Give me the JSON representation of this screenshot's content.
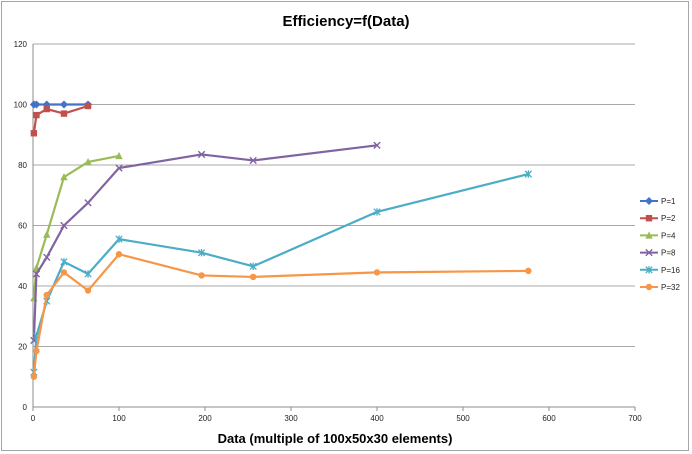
{
  "chart_data": {
    "type": "line",
    "title": "Efficiency=f(Data)",
    "xlabel": "Data (multiple of 100x50x30 elements)",
    "ylabel": "",
    "xlim": [
      0,
      700
    ],
    "ylim": [
      0,
      120
    ],
    "xticks": [
      0,
      100,
      200,
      300,
      400,
      500,
      600,
      700
    ],
    "yticks": [
      0,
      20,
      40,
      60,
      80,
      100,
      120
    ],
    "grid": "horizontal",
    "legend": "right",
    "series": [
      {
        "name": "P=1",
        "color": "#4472c4",
        "marker": "diamond",
        "x": [
          1,
          4,
          16,
          36,
          64
        ],
        "y": [
          100,
          100,
          100,
          100,
          100
        ]
      },
      {
        "name": "P=2",
        "color": "#c0504d",
        "marker": "square",
        "x": [
          1,
          4,
          16,
          36,
          64
        ],
        "y": [
          90.5,
          96.5,
          98.5,
          97,
          99.5
        ]
      },
      {
        "name": "P=4",
        "color": "#9bbb59",
        "marker": "triangle",
        "x": [
          1,
          4,
          16,
          36,
          64,
          100
        ],
        "y": [
          36,
          46,
          57,
          76,
          81,
          83
        ]
      },
      {
        "name": "P=8",
        "color": "#8064a2",
        "marker": "x",
        "x": [
          1,
          4,
          16,
          36,
          64,
          100,
          196,
          256,
          400
        ],
        "y": [
          22,
          44,
          49.5,
          60,
          67.5,
          79,
          83.5,
          81.5,
          86.5
        ]
      },
      {
        "name": "P=16",
        "color": "#4bacc6",
        "marker": "star",
        "x": [
          1,
          4,
          16,
          36,
          64,
          100,
          196,
          256,
          400,
          576
        ],
        "y": [
          11.5,
          23.5,
          35,
          48,
          44,
          55.5,
          51,
          46.5,
          64.5,
          77
        ]
      },
      {
        "name": "P=32",
        "color": "#f79646",
        "marker": "circle",
        "x": [
          1,
          4,
          16,
          36,
          64,
          100,
          196,
          256,
          400,
          576
        ],
        "y": [
          10,
          18.5,
          37,
          44.5,
          38.5,
          50.5,
          43.5,
          43,
          44.5,
          45
        ]
      }
    ]
  }
}
